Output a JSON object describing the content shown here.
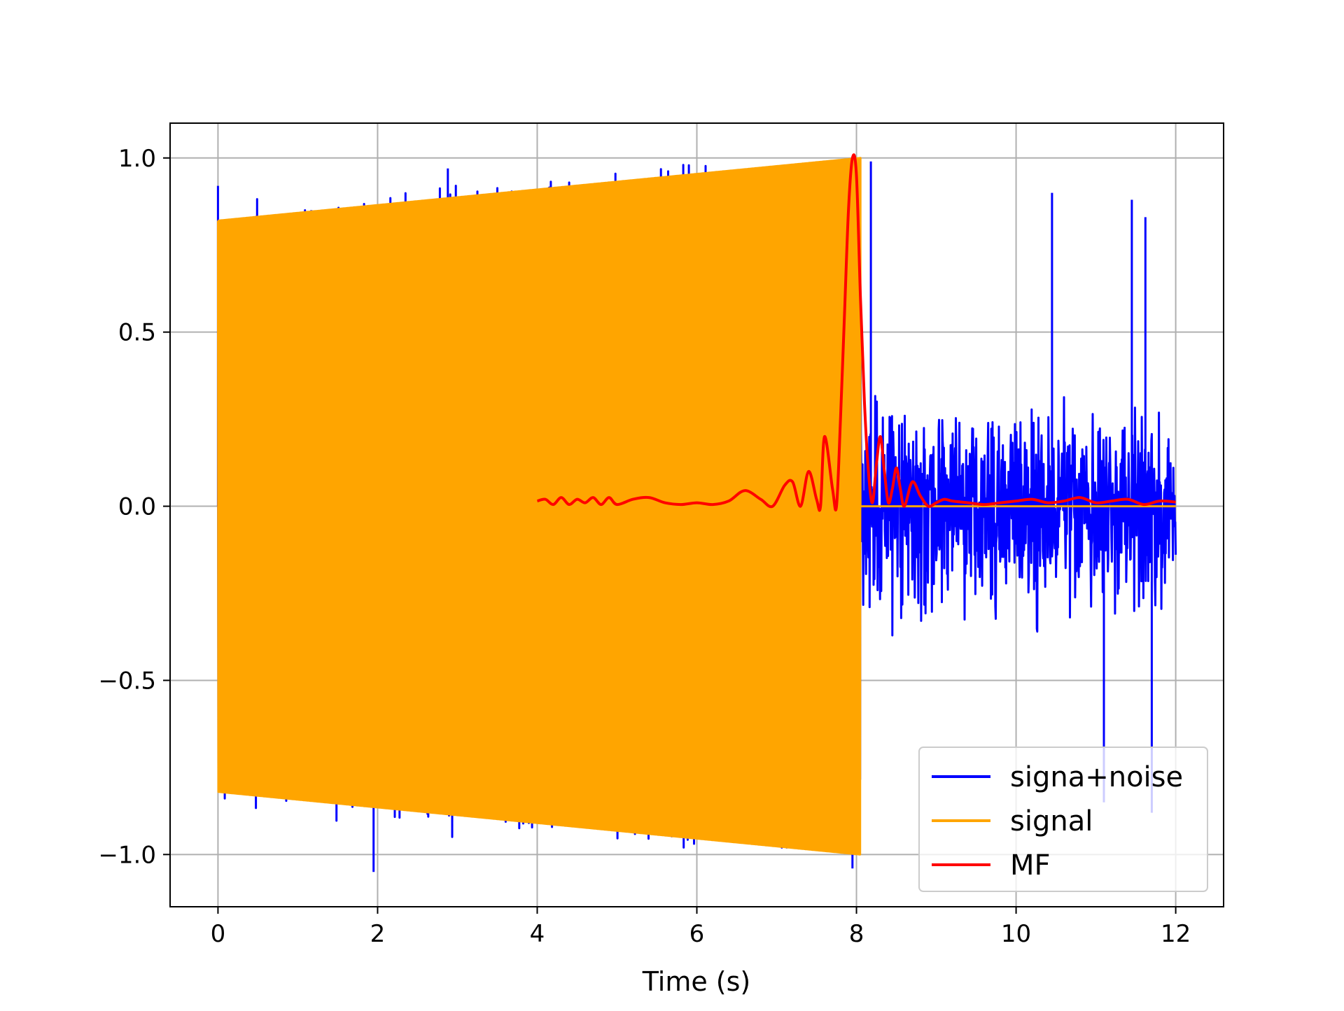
{
  "chart_data": {
    "type": "line",
    "title": "",
    "xlabel": "Time (s)",
    "ylabel": "",
    "xlim": [
      -0.6,
      12.6
    ],
    "ylim": [
      -1.15,
      1.1
    ],
    "x_ticks": [
      {
        "value": 0,
        "label": "0"
      },
      {
        "value": 2,
        "label": "2"
      },
      {
        "value": 4,
        "label": "4"
      },
      {
        "value": 6,
        "label": "6"
      },
      {
        "value": 8,
        "label": "8"
      },
      {
        "value": 10,
        "label": "10"
      },
      {
        "value": 12,
        "label": "12"
      }
    ],
    "y_ticks": [
      {
        "value": -1.0,
        "label": "−1.0"
      },
      {
        "value": -0.5,
        "label": "−0.5"
      },
      {
        "value": 0.0,
        "label": "0.0"
      },
      {
        "value": 0.5,
        "label": "0.5"
      },
      {
        "value": 1.0,
        "label": "1.0"
      }
    ],
    "grid": true,
    "legend_position": "lower-right",
    "series": [
      {
        "name": "signa+noise",
        "color": "#0000ff",
        "kind": "noisy-oscillation",
        "x_range": [
          0,
          12
        ],
        "envelope": [
          [
            0,
            0.82
          ],
          [
            8.05,
            1.0
          ],
          [
            8.05,
            0.5
          ],
          [
            12,
            0.5
          ]
        ],
        "peaks": [
          [
            0.0,
            0.92
          ],
          [
            1.17,
            0.85
          ],
          [
            1.95,
            -1.05
          ],
          [
            2.88,
            0.97
          ],
          [
            7.95,
            -1.04
          ],
          [
            8.18,
            0.99
          ],
          [
            10.45,
            0.9
          ],
          [
            11.1,
            -0.85
          ],
          [
            11.45,
            0.88
          ],
          [
            11.7,
            -0.88
          ],
          [
            11.62,
            0.83
          ]
        ]
      },
      {
        "name": "signal",
        "color": "#ffa500",
        "kind": "chirp",
        "x_range": [
          0,
          12
        ],
        "active_range": [
          0,
          8.05
        ],
        "amplitude_start": 0.82,
        "amplitude_end": 1.0,
        "baseline": 0.0
      },
      {
        "name": "MF",
        "color": "#ff0000",
        "kind": "line",
        "x": [
          4.0,
          4.1,
          4.2,
          4.3,
          4.4,
          4.5,
          4.6,
          4.7,
          4.8,
          4.9,
          5.0,
          5.2,
          5.4,
          5.6,
          5.8,
          6.0,
          6.2,
          6.4,
          6.6,
          6.8,
          6.95,
          7.1,
          7.2,
          7.3,
          7.4,
          7.5,
          7.55,
          7.6,
          7.7,
          7.75,
          7.8,
          7.85,
          7.9,
          7.95,
          8.0,
          8.05,
          8.1,
          8.15,
          8.2,
          8.25,
          8.3,
          8.35,
          8.4,
          8.45,
          8.5,
          8.55,
          8.6,
          8.7,
          8.8,
          8.9,
          9.0,
          9.1,
          9.2,
          9.4,
          9.6,
          9.8,
          10.0,
          10.2,
          10.4,
          10.6,
          10.8,
          11.0,
          11.2,
          11.4,
          11.6,
          11.8,
          12.0
        ],
        "y": [
          0.015,
          0.02,
          0.005,
          0.025,
          0.005,
          0.02,
          0.01,
          0.025,
          0.005,
          0.025,
          0.005,
          0.02,
          0.025,
          0.01,
          0.005,
          0.01,
          0.005,
          0.015,
          0.045,
          0.02,
          0.0,
          0.06,
          0.07,
          0.0,
          0.1,
          0.02,
          0.0,
          0.2,
          0.05,
          0.0,
          0.25,
          0.55,
          0.85,
          1.0,
          0.95,
          0.6,
          0.3,
          0.1,
          0.01,
          0.12,
          0.2,
          0.1,
          0.01,
          0.05,
          0.11,
          0.05,
          0.0,
          0.07,
          0.03,
          0.0,
          0.01,
          0.02,
          0.015,
          0.01,
          0.005,
          0.01,
          0.015,
          0.02,
          0.01,
          0.015,
          0.025,
          0.01,
          0.015,
          0.02,
          0.005,
          0.015,
          0.012
        ]
      }
    ]
  }
}
